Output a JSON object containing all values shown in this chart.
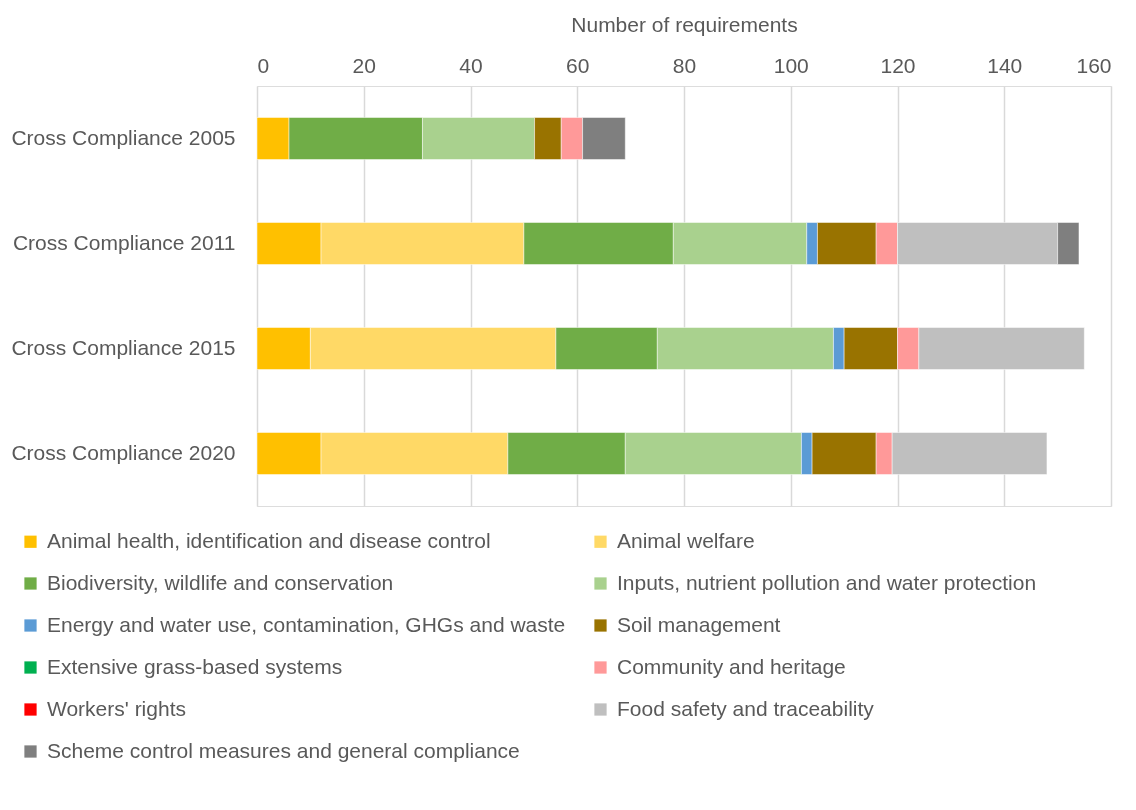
{
  "chart_data": {
    "type": "bar",
    "orientation": "horizontal",
    "stacked": true,
    "xlabel": "Number of requirements",
    "categories": [
      "Cross Compliance 2005",
      "Cross Compliance 2011",
      "Cross Compliance 2015",
      "Cross Compliance 2020"
    ],
    "xlim": [
      0,
      160
    ],
    "xticks": [
      0,
      20,
      40,
      60,
      80,
      100,
      120,
      140,
      160
    ],
    "grid": "x",
    "legend": "bottom",
    "series": [
      {
        "name": "Animal health, identification and disease control",
        "color": "#ffc000",
        "values": [
          6,
          12,
          10,
          12
        ]
      },
      {
        "name": "Animal welfare",
        "color": "#ffd966",
        "values": [
          null,
          38,
          46,
          35
        ]
      },
      {
        "name": "Biodiversity, wildlife and conservation",
        "color": "#70ad47",
        "values": [
          25,
          28,
          19,
          22
        ]
      },
      {
        "name": "Inputs, nutrient pollution and water protection",
        "color": "#a9d18e",
        "values": [
          21,
          25,
          33,
          33
        ]
      },
      {
        "name": "Energy and water use, contamination, GHGs and waste",
        "color": "#5b9bd5",
        "values": [
          null,
          2,
          2,
          2
        ]
      },
      {
        "name": "Soil management",
        "color": "#997300",
        "values": [
          5,
          11,
          10,
          12
        ]
      },
      {
        "name": "Extensive grass-based systems",
        "color": "#00b050",
        "values": [
          null,
          null,
          null,
          null
        ]
      },
      {
        "name": "Community and heritage",
        "color": "#ff9999",
        "values": [
          4,
          4,
          4,
          3
        ]
      },
      {
        "name": "Workers' rights",
        "color": "#ff0000",
        "values": [
          null,
          null,
          null,
          null
        ]
      },
      {
        "name": "Food safety and traceability",
        "color": "#bfbfbf",
        "values": [
          null,
          30,
          31,
          29
        ]
      },
      {
        "name": "Scheme control measures and general compliance",
        "color": "#7f7f7f",
        "values": [
          8,
          4,
          null,
          null
        ]
      }
    ]
  }
}
